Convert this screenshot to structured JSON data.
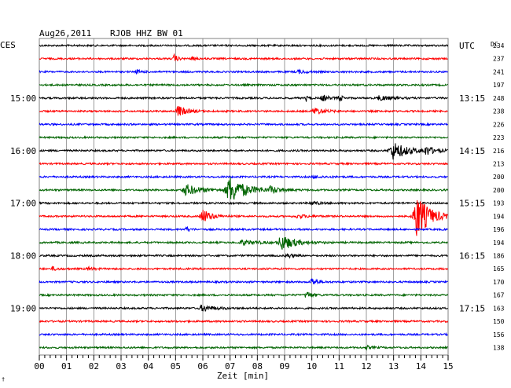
{
  "header": {
    "date": "Aug26,2011",
    "station": "RJOB HHZ BW 01",
    "left_tz": "CES",
    "right_tz": "UTC",
    "dc_label": "DC"
  },
  "colors": {
    "black": "#000000",
    "red": "#ff0000",
    "blue": "#0000ff",
    "green": "#006400",
    "grid": "#808080"
  },
  "chart_data": {
    "type": "line",
    "title": "Aug26,2011   RJOB HHZ BW 01",
    "xlabel": "Zeit [min]",
    "ylabel": "",
    "xlim": [
      0,
      15
    ],
    "x_ticks": [
      "00",
      "01",
      "02",
      "03",
      "04",
      "05",
      "06",
      "07",
      "08",
      "09",
      "10",
      "11",
      "12",
      "13",
      "14",
      "15"
    ],
    "left_time_labels": [
      {
        "row": 4,
        "label": "15:00"
      },
      {
        "row": 8,
        "label": "16:00"
      },
      {
        "row": 12,
        "label": "17:00"
      },
      {
        "row": 16,
        "label": "18:00"
      },
      {
        "row": 20,
        "label": "19:00"
      }
    ],
    "right_time_labels": [
      {
        "row": 0,
        "label": "UTC"
      },
      {
        "row": 4,
        "label": "13:15"
      },
      {
        "row": 8,
        "label": "14:15"
      },
      {
        "row": 12,
        "label": "15:15"
      },
      {
        "row": 16,
        "label": "16:15"
      },
      {
        "row": 20,
        "label": "17:15"
      }
    ],
    "row_colors": [
      "black",
      "red",
      "blue",
      "green"
    ],
    "dc_offsets": [
      234,
      237,
      241,
      197,
      248,
      238,
      226,
      223,
      216,
      213,
      200,
      200,
      193,
      194,
      196,
      194,
      186,
      165,
      170,
      167,
      163,
      150,
      156,
      138
    ],
    "events": [
      {
        "row": 1,
        "t": 4.95,
        "amp": 6,
        "width": 0.1
      },
      {
        "row": 1,
        "t": 5.6,
        "amp": 2,
        "width": 0.15
      },
      {
        "row": 2,
        "t": 3.6,
        "amp": 2,
        "width": 0.2
      },
      {
        "row": 2,
        "t": 9.5,
        "amp": 2,
        "width": 0.3
      },
      {
        "row": 4,
        "t": 9.8,
        "amp": 4,
        "width": 0.1
      },
      {
        "row": 4,
        "t": 10.4,
        "amp": 4,
        "width": 0.2
      },
      {
        "row": 4,
        "t": 11.0,
        "amp": 5,
        "width": 0.1
      },
      {
        "row": 4,
        "t": 12.5,
        "amp": 3,
        "width": 0.4
      },
      {
        "row": 5,
        "t": 5.1,
        "amp": 7,
        "width": 0.3
      },
      {
        "row": 5,
        "t": 10.1,
        "amp": 5,
        "width": 0.3
      },
      {
        "row": 8,
        "t": 13.0,
        "amp": 11,
        "width": 0.5
      },
      {
        "row": 8,
        "t": 14.2,
        "amp": 5,
        "width": 0.3
      },
      {
        "row": 10,
        "t": 10.1,
        "amp": 1.5,
        "width": 0.3
      },
      {
        "row": 11,
        "t": 5.4,
        "amp": 7,
        "width": 0.5
      },
      {
        "row": 11,
        "t": 7.0,
        "amp": 17,
        "width": 0.55
      },
      {
        "row": 11,
        "t": 8.5,
        "amp": 4,
        "width": 0.3
      },
      {
        "row": 12,
        "t": 10.0,
        "amp": 2,
        "width": 0.3
      },
      {
        "row": 13,
        "t": 6.0,
        "amp": 9,
        "width": 0.3
      },
      {
        "row": 13,
        "t": 9.5,
        "amp": 2,
        "width": 0.4
      },
      {
        "row": 13,
        "t": 13.85,
        "amp": 28,
        "width": 0.45
      },
      {
        "row": 14,
        "t": 5.4,
        "amp": 4,
        "width": 0.1
      },
      {
        "row": 15,
        "t": 8.9,
        "amp": 10,
        "width": 0.45
      },
      {
        "row": 15,
        "t": 7.5,
        "amp": 3,
        "width": 0.5
      },
      {
        "row": 16,
        "t": 9.1,
        "amp": 3,
        "width": 0.2
      },
      {
        "row": 17,
        "t": 0.5,
        "amp": 2,
        "width": 0.2
      },
      {
        "row": 17,
        "t": 1.8,
        "amp": 2,
        "width": 0.2
      },
      {
        "row": 18,
        "t": 10.0,
        "amp": 5,
        "width": 0.2
      },
      {
        "row": 19,
        "t": 9.8,
        "amp": 5,
        "width": 0.2
      },
      {
        "row": 20,
        "t": 6.0,
        "amp": 4,
        "width": 0.4
      },
      {
        "row": 23,
        "t": 12.0,
        "amp": 2,
        "width": 0.2
      }
    ]
  }
}
